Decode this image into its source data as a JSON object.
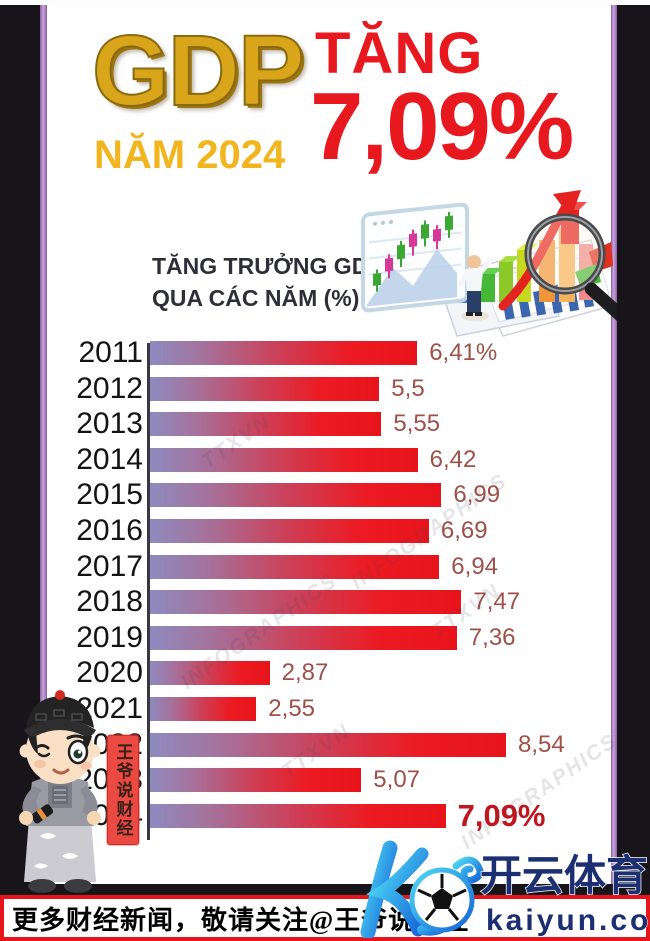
{
  "header": {
    "gdp_word": "GDP",
    "subtitle": "NĂM 2024",
    "growth_word": "TĂNG",
    "growth_value": "7,09%",
    "gdp_color": "#d9a61b",
    "accent_red": "#e8191e"
  },
  "chart_data": {
    "type": "bar",
    "orientation": "horizontal",
    "title": "TĂNG TRƯỞNG GDP QUA CÁC NĂM (%)",
    "title_lines": [
      "TĂNG TRƯỞNG GDP",
      "QUA CÁC NĂM (%)"
    ],
    "categories": [
      "2011",
      "2012",
      "2013",
      "2014",
      "2015",
      "2016",
      "2017",
      "2018",
      "2019",
      "2020",
      "2021",
      "2022",
      "2023",
      "2024"
    ],
    "values": [
      6.41,
      5.5,
      5.55,
      6.42,
      6.99,
      6.69,
      6.94,
      7.47,
      7.36,
      2.87,
      2.55,
      8.54,
      5.07,
      7.09
    ],
    "value_labels": [
      "6,41%",
      "5,5",
      "5,55",
      "6,42",
      "6,99",
      "6,69",
      "6,94",
      "7,47",
      "7,36",
      "2,87",
      "2,55",
      "8,54",
      "5,07",
      "7,09%"
    ],
    "xlim": [
      0,
      8.54
    ],
    "highlight_index": 13,
    "bar_gradient": [
      "#8e8bbf",
      "#ec1c24"
    ],
    "value_label_color": "#9d5148",
    "highlight_label_color": "#c0151d",
    "grid": false,
    "legend": false
  },
  "watermarks": [
    "TTXVN",
    "INFOGRAPHICS"
  ],
  "seal": {
    "text": "王爷说财经"
  },
  "brand": {
    "monogram": "K",
    "name_cn": "开云体育",
    "domain": "kaiyun.com",
    "gradient": [
      "#4fd9f5",
      "#1565d8"
    ],
    "text_color": "#1b2f72"
  },
  "footer": {
    "notice": "更多财经新闻，敬请关注@王爷说财经"
  }
}
